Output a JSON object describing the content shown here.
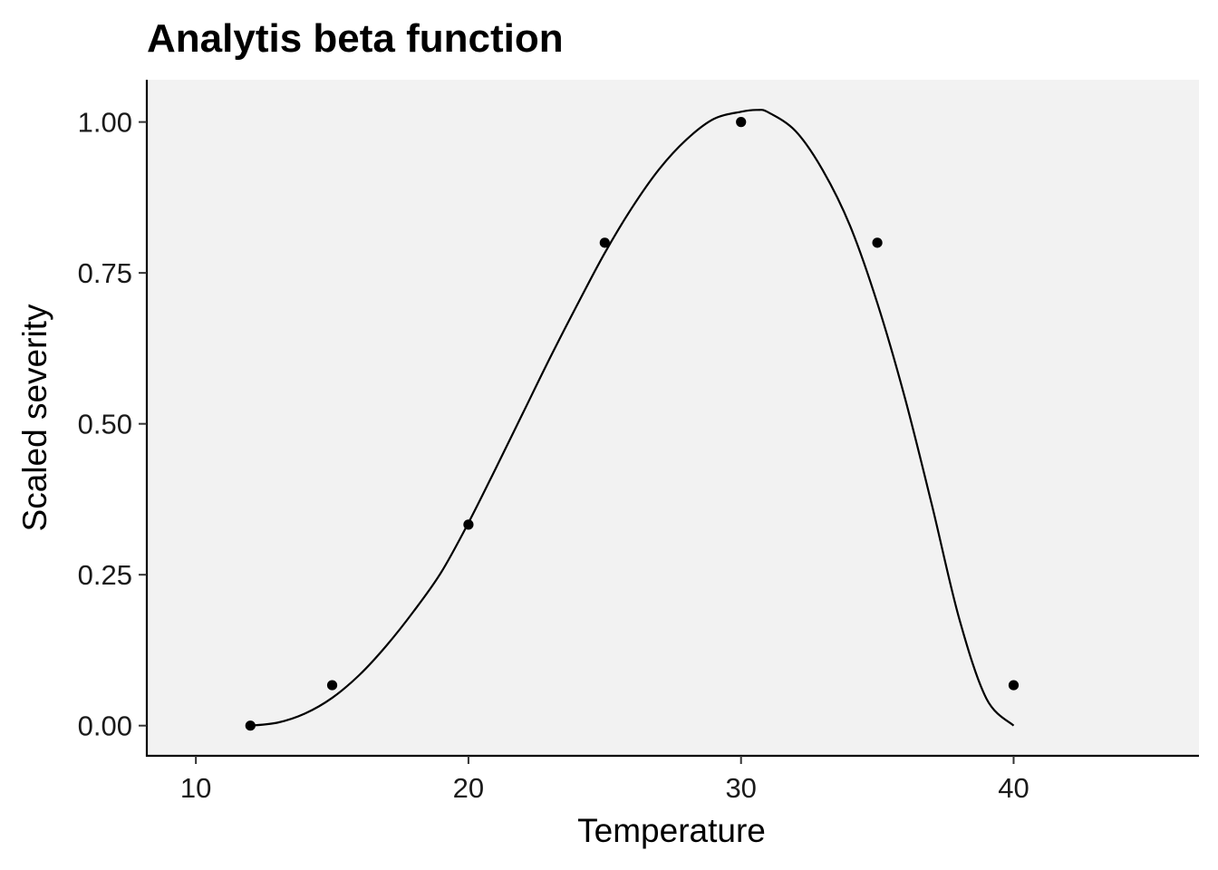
{
  "chart_data": {
    "type": "scatter",
    "title": "Analytis beta function",
    "xlabel": "Temperature",
    "ylabel": "Scaled severity",
    "xlim": [
      8.2,
      46.8
    ],
    "ylim": [
      -0.05,
      1.07
    ],
    "x_ticks": [
      10,
      20,
      30,
      40
    ],
    "x_tick_labels": [
      "10",
      "20",
      "30",
      "40"
    ],
    "y_ticks": [
      0,
      0.25,
      0.5,
      0.75,
      1.0
    ],
    "y_tick_labels": [
      "0.00",
      "0.25",
      "0.50",
      "0.75",
      "1.00"
    ],
    "grid": false,
    "panel_background": "#f2f2f2",
    "point_color": "#000000",
    "line_color": "#000000",
    "points": {
      "x": [
        12,
        15,
        20,
        25,
        30,
        35,
        40
      ],
      "y": [
        0.0,
        0.067,
        0.333,
        0.8,
        1.0,
        0.8,
        0.067
      ]
    },
    "fitted_curve": {
      "x": [
        12,
        13,
        14,
        15,
        16,
        17,
        18,
        19,
        20,
        21,
        22,
        23,
        24,
        25,
        26,
        27,
        28,
        29,
        30,
        30.6,
        31,
        32,
        33,
        34,
        35,
        36,
        37,
        38,
        39,
        40
      ],
      "y": [
        0.0,
        0.005,
        0.02,
        0.046,
        0.084,
        0.133,
        0.19,
        0.254,
        0.336,
        0.426,
        0.518,
        0.61,
        0.698,
        0.783,
        0.858,
        0.922,
        0.971,
        1.005,
        1.017,
        1.02,
        1.016,
        0.985,
        0.92,
        0.828,
        0.7,
        0.545,
        0.366,
        0.178,
        0.045,
        0.0
      ]
    }
  }
}
